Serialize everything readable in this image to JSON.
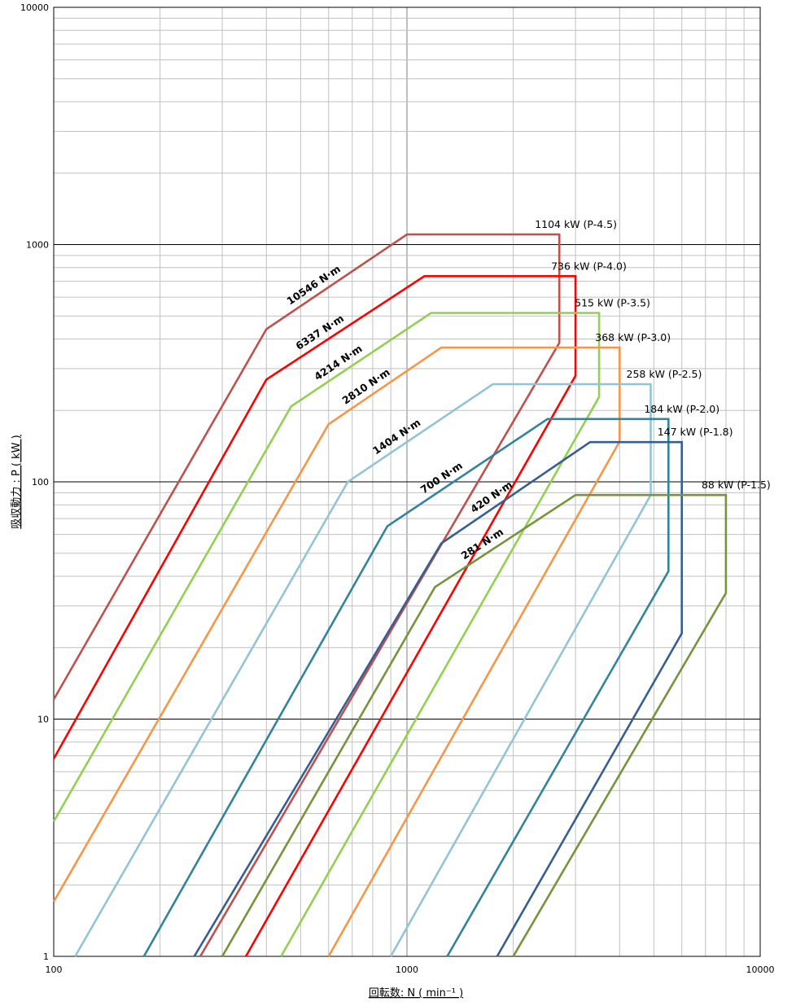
{
  "chart_data": {
    "type": "line",
    "title": "",
    "xlabel": "回転数: N ( min⁻¹ )",
    "ylabel": "吸収動力 : P ( kW )",
    "x_scale": "log",
    "y_scale": "log",
    "xlim": [
      100,
      10000
    ],
    "ylim": [
      1,
      10000
    ],
    "x_ticks": [
      "100",
      "1000",
      "10000"
    ],
    "y_ticks": [
      "1",
      "10",
      "100",
      "1000",
      "10000"
    ],
    "grid": true,
    "legend": "none",
    "series": [
      {
        "name": "1104 kW (P-4.5)",
        "torque_label": "10546 N·m",
        "color": "#c0504d",
        "points": [
          [
            100,
            12.1
          ],
          [
            400,
            440
          ],
          [
            1000,
            1104
          ],
          [
            2700,
            1104
          ],
          [
            2700,
            385
          ],
          [
            260,
            1
          ]
        ]
      },
      {
        "name": "736 kW (P-4.0)",
        "torque_label": "6337 N·m",
        "color": "#ff0000",
        "points": [
          [
            100,
            6.8
          ],
          [
            400,
            270
          ],
          [
            1120,
            736
          ],
          [
            3000,
            736
          ],
          [
            3000,
            280
          ],
          [
            350,
            1
          ]
        ]
      },
      {
        "name": "515 kW (P-3.5)",
        "torque_label": "4214 N·m",
        "color": "#92d050",
        "points": [
          [
            100,
            3.7
          ],
          [
            470,
            208
          ],
          [
            1170,
            515
          ],
          [
            3500,
            515
          ],
          [
            3500,
            228
          ],
          [
            440,
            1
          ]
        ]
      },
      {
        "name": "368 kW (P-3.0)",
        "torque_label": "2810 N·m",
        "color": "#f79646",
        "points": [
          [
            100,
            1.7
          ],
          [
            600,
            175
          ],
          [
            1250,
            368
          ],
          [
            4000,
            368
          ],
          [
            4000,
            148
          ],
          [
            600,
            1
          ]
        ]
      },
      {
        "name": "258 kW (P-2.5)",
        "torque_label": "1404 N·m",
        "color": "#93c4d6",
        "points": [
          [
            115,
            1
          ],
          [
            680,
            100
          ],
          [
            1750,
            258
          ],
          [
            4900,
            258
          ],
          [
            4900,
            88
          ],
          [
            900,
            1
          ]
        ]
      },
      {
        "name": "184 kW (P-2.0)",
        "torque_label": "700 N·m",
        "color": "#31849b",
        "points": [
          [
            180,
            1
          ],
          [
            880,
            65
          ],
          [
            2500,
            184
          ],
          [
            5500,
            184
          ],
          [
            5500,
            42
          ],
          [
            1300,
            1
          ]
        ]
      },
      {
        "name": "147 kW (P-1.8)",
        "torque_label": "420 N·m",
        "color": "#365f91",
        "points": [
          [
            250,
            1
          ],
          [
            1250,
            55
          ],
          [
            3300,
            147
          ],
          [
            6000,
            147
          ],
          [
            6000,
            23
          ],
          [
            1800,
            1
          ]
        ]
      },
      {
        "name": "88 kW (P-1.5)",
        "torque_label": "281 N·m",
        "color": "#77933c",
        "points": [
          [
            300,
            1
          ],
          [
            1200,
            36
          ],
          [
            3000,
            88
          ],
          [
            8000,
            88
          ],
          [
            8000,
            34
          ],
          [
            2000,
            1
          ]
        ]
      }
    ]
  }
}
